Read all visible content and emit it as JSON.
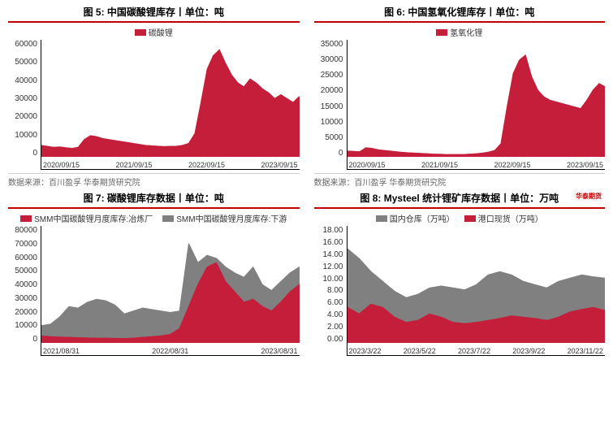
{
  "colors": {
    "series_red": "#c41e3a",
    "series_gray": "#808080",
    "title_underline": "#c00000",
    "axis": "#000000",
    "text": "#333333",
    "source_text": "#666666",
    "background": "#ffffff"
  },
  "fonts": {
    "title_size": 12,
    "axis_size": 10,
    "legend_size": 10
  },
  "logo_text": "华泰期货",
  "charts": [
    {
      "id": "chart5",
      "title": "图 5: 中国碳酸锂库存丨单位：吨",
      "type": "area",
      "legend": [
        {
          "label": "碳酸锂",
          "color": "#c41e3a"
        }
      ],
      "ylim": [
        0,
        60000
      ],
      "ytick_step": 10000,
      "xticks": [
        "2020/09/15",
        "2021/09/15",
        "2022/09/15",
        "2023/09/15"
      ],
      "series": [
        {
          "color": "#c41e3a",
          "fill": true,
          "values": [
            6000,
            5500,
            5000,
            5200,
            4800,
            4500,
            5000,
            9000,
            11000,
            10500,
            9500,
            9000,
            8500,
            8000,
            7500,
            7000,
            6500,
            6000,
            5800,
            5600,
            5400,
            5500,
            5600,
            6000,
            7000,
            12000,
            28000,
            45000,
            52000,
            55000,
            48000,
            42000,
            38000,
            36000,
            40000,
            38000,
            35000,
            33000,
            30000,
            32000,
            30000,
            28000,
            31000
          ]
        }
      ],
      "source": "数据来源：百川盈孚 华泰期货研究院"
    },
    {
      "id": "chart6",
      "title": "图 6: 中国氢氧化锂库存丨单位：吨",
      "type": "area",
      "legend": [
        {
          "label": "氢氧化锂",
          "color": "#c41e3a"
        }
      ],
      "ylim": [
        0,
        35000
      ],
      "ytick_step": 5000,
      "xticks": [
        "2020/09/15",
        "2021/09/15",
        "2022/09/15",
        "2023/09/15"
      ],
      "series": [
        {
          "color": "#c41e3a",
          "fill": true,
          "values": [
            1800,
            1700,
            1600,
            2800,
            2600,
            2200,
            2000,
            1800,
            1600,
            1400,
            1300,
            1200,
            1100,
            1000,
            900,
            850,
            800,
            780,
            760,
            800,
            900,
            1000,
            1200,
            1500,
            2000,
            4000,
            15000,
            25000,
            29000,
            30500,
            24000,
            20000,
            18000,
            17000,
            16500,
            16000,
            15500,
            15000,
            14500,
            17000,
            20000,
            22000,
            21000
          ]
        }
      ],
      "source": "数据来源：百川盈孚 华泰期货研究院"
    },
    {
      "id": "chart7",
      "title": "图 7: 碳酸锂库存数据丨单位：吨",
      "type": "stacked-area",
      "legend": [
        {
          "label": "SMM中国碳酸锂月度库存:冶炼厂",
          "color": "#c41e3a"
        },
        {
          "label": "SMM中国碳酸锂月度库存:下游",
          "color": "#808080"
        }
      ],
      "ylim": [
        0,
        80000
      ],
      "ytick_step": 10000,
      "xticks": [
        "2021/08/31",
        "2022/08/31",
        "2023/08/31"
      ],
      "series": [
        {
          "color": "#c41e3a",
          "fill": true,
          "values": [
            5000,
            4500,
            4200,
            4000,
            3800,
            3600,
            3500,
            3400,
            3300,
            3200,
            3500,
            4000,
            4500,
            5000,
            6000,
            10000,
            25000,
            40000,
            52000,
            55000,
            42000,
            35000,
            28000,
            30000,
            25000,
            22000,
            28000,
            35000,
            40000
          ]
        },
        {
          "color": "#808080",
          "fill": true,
          "values": [
            12000,
            13000,
            18000,
            25000,
            24000,
            28000,
            30000,
            29000,
            26000,
            20000,
            22000,
            24000,
            23000,
            22000,
            21000,
            22000,
            68000,
            55000,
            60000,
            58000,
            52000,
            48000,
            45000,
            52000,
            40000,
            36000,
            42000,
            48000,
            52000
          ]
        }
      ],
      "source": ""
    },
    {
      "id": "chart8",
      "title": "图 8: Mysteel 统计锂矿库存数据丨单位：万吨",
      "type": "stacked-area",
      "legend": [
        {
          "label": "国内仓库（万吨）",
          "color": "#808080"
        },
        {
          "label": "港口现货（万吨）",
          "color": "#c41e3a"
        }
      ],
      "ylim": [
        0,
        18
      ],
      "ytick_step": 2,
      "ytick_decimals": 2,
      "xticks": [
        "2023/3/22",
        "2023/5/22",
        "2023/7/22",
        "2023/9/22",
        "2023/11/22"
      ],
      "series": [
        {
          "color": "#c41e3a",
          "fill": true,
          "values": [
            5.5,
            4.5,
            6.0,
            5.5,
            4.0,
            3.2,
            3.5,
            4.5,
            4.0,
            3.2,
            3.0,
            3.2,
            3.5,
            3.8,
            4.2,
            4.0,
            3.8,
            3.5,
            4.0,
            4.8,
            5.2,
            5.5,
            5.0
          ]
        },
        {
          "color": "#808080",
          "fill": true,
          "values": [
            14.5,
            13.0,
            11.0,
            9.5,
            8.0,
            7.0,
            7.5,
            8.5,
            8.8,
            8.5,
            8.2,
            9.0,
            10.5,
            11.0,
            10.5,
            9.5,
            9.0,
            8.5,
            9.5,
            10.0,
            10.5,
            10.2,
            10.0
          ]
        }
      ],
      "logo": true,
      "source": ""
    }
  ]
}
